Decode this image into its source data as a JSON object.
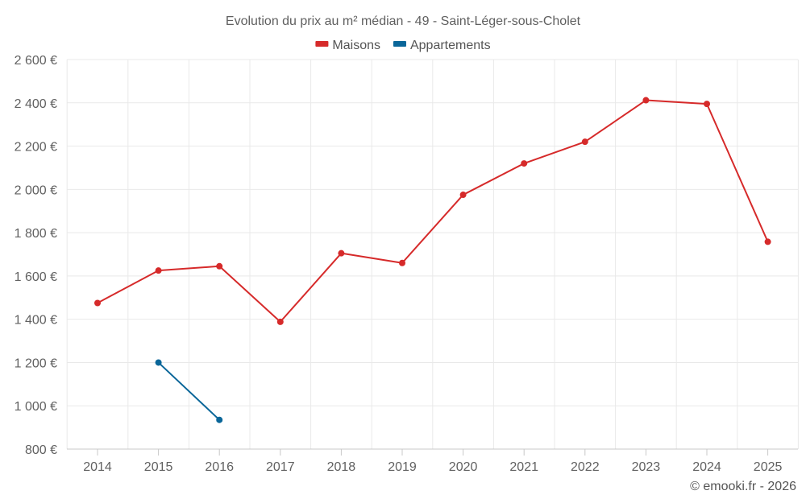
{
  "chart_data": {
    "type": "line",
    "title": "Evolution du prix au m² médian - 49 - Saint-Léger-sous-Cholet",
    "categories": [
      "2014",
      "2015",
      "2016",
      "2017",
      "2018",
      "2019",
      "2020",
      "2021",
      "2022",
      "2023",
      "2024",
      "2025"
    ],
    "series": [
      {
        "name": "Maisons",
        "color": "#d62a2a",
        "values": [
          1475,
          1625,
          1645,
          1388,
          1705,
          1660,
          1975,
          2120,
          2220,
          2412,
          2395,
          1758
        ]
      },
      {
        "name": "Appartements",
        "color": "#0a6699",
        "values": [
          null,
          1200,
          935,
          null,
          null,
          null,
          null,
          null,
          null,
          null,
          null,
          null
        ]
      }
    ],
    "ylim": [
      800,
      2600
    ],
    "yticks": [
      800,
      1000,
      1200,
      1400,
      1600,
      1800,
      2000,
      2200,
      2400,
      2600
    ],
    "ytick_labels": [
      "800 €",
      "1 000 €",
      "1 200 €",
      "1 400 €",
      "1 600 €",
      "1 800 €",
      "2 000 €",
      "2 200 €",
      "2 400 €",
      "2 600 €"
    ],
    "xlabel": "",
    "ylabel": "",
    "grid": true,
    "legend_position": "top-center"
  },
  "credit": "© emooki.fr - 2026"
}
